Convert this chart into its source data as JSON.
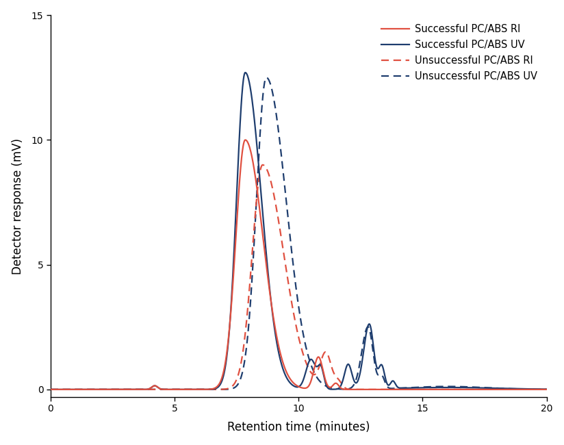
{
  "title": "",
  "xlabel": "Retention time (minutes)",
  "ylabel": "Detector response (mV)",
  "xlim": [
    0,
    20
  ],
  "ylim": [
    -0.3,
    15
  ],
  "yticks": [
    0,
    5,
    10,
    15
  ],
  "xticks": [
    0,
    5,
    10,
    15,
    20
  ],
  "legend_entries": [
    "Successful PC/ABS RI",
    "Successful PC/ABS UV",
    "Unsuccessful PC/ABS RI",
    "Unsuccessful PC/ABS UV"
  ],
  "colors": {
    "success_ri": "#E05040",
    "success_uv": "#1E3D6E",
    "unsuccess_ri": "#E05040",
    "unsuccess_uv": "#1E3D6E"
  },
  "background_color": "#ffffff",
  "figsize": [
    8.24,
    6.5
  ],
  "dpi": 100
}
